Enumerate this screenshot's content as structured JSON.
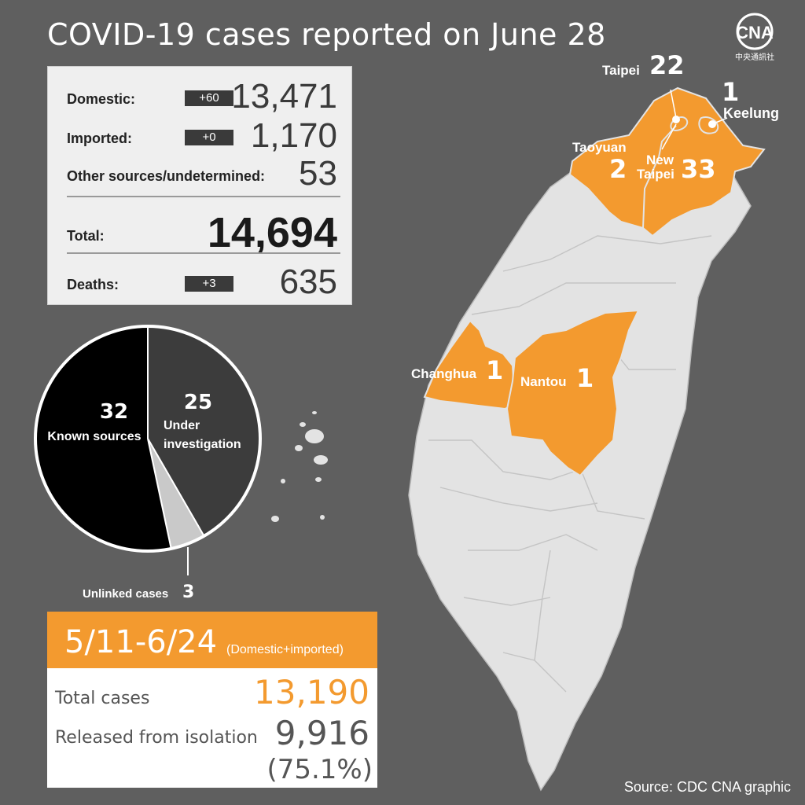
{
  "title": "COVID-19 cases reported on June 28",
  "logo": {
    "text": "CNA",
    "subtext": "中央通訊社",
    "icon": "cna-logo"
  },
  "stats": {
    "domestic": {
      "label": "Domestic:",
      "delta": "+60",
      "value": "13,471"
    },
    "imported": {
      "label": "Imported:",
      "delta": "+0",
      "value": "1,170"
    },
    "other": {
      "label": "Other sources/undetermined:",
      "value": "53"
    },
    "total": {
      "label": "Total:",
      "value": "14,694"
    },
    "deaths": {
      "label": "Deaths:",
      "delta": "+3",
      "value": "635"
    }
  },
  "chart_data": {
    "type": "pie",
    "title": "",
    "slices": [
      {
        "name": "Under investigation",
        "value": 25,
        "color": "#3c3c3c"
      },
      {
        "name": "Unlinked cases",
        "value": 3,
        "color": "#c9c9c9"
      },
      {
        "name": "Known sources",
        "value": 32,
        "color": "#000000"
      }
    ],
    "labels": {
      "known": {
        "value": "32",
        "text": "Known sources"
      },
      "under": {
        "value": "25",
        "text1": "Under",
        "text2": "investigation"
      },
      "unlinked": {
        "text": "Unlinked cases",
        "value": "3"
      }
    }
  },
  "period": {
    "range": "5/11-6/24",
    "note": "(Domestic+imported)",
    "total_label": "Total cases",
    "total_value": "13,190",
    "released_label": "Released from isolation",
    "released_value": "9,916",
    "released_pct": "(75.1%)"
  },
  "map": {
    "highlight_color": "#f39a2f",
    "land_color": "#e3e3e3",
    "regions": {
      "taipei": {
        "name": "Taipei",
        "count": "22"
      },
      "keelung": {
        "name": "Keelung",
        "count": "1"
      },
      "taoyuan": {
        "name": "Taoyuan",
        "count": "2"
      },
      "newtaipei": {
        "name1": "New",
        "name2": "Taipei",
        "count": "33"
      },
      "changhua": {
        "name": "Changhua",
        "count": "1"
      },
      "nantou": {
        "name": "Nantou",
        "count": "1"
      }
    }
  },
  "source": "Source: CDC    CNA graphic"
}
